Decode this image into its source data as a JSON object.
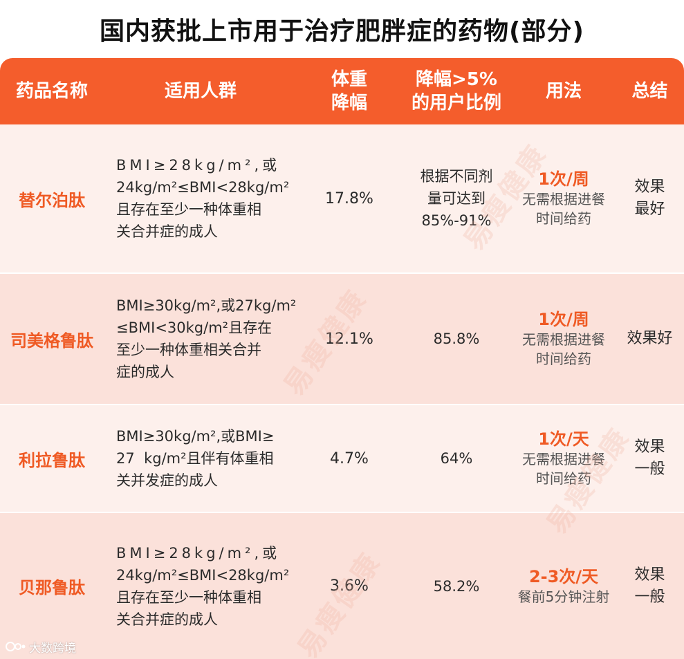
{
  "title": "国内获批上市用于治疗肥胖症的药物(部分)",
  "header": {
    "name": "药品名称",
    "population": "适用人群",
    "weight_loss": [
      "体重",
      "降幅"
    ],
    "ratio": [
      "降幅>5%",
      "的用户比例"
    ],
    "usage": "用法",
    "summary": "总结"
  },
  "rows": [
    {
      "name": "替尔泊肽",
      "population": [
        "BMI≥28kg/m²,或",
        "24kg/m²≤BMI<28kg/m²",
        "且存在至少一种体重相",
        "关合并症的成人"
      ],
      "weight_loss": "17.8%",
      "ratio": [
        "根据不同剂",
        "量可达到",
        "85%-91%"
      ],
      "frequency": "1次/周",
      "usage_note": [
        "无需根据进餐",
        "时间给药"
      ],
      "summary": [
        "效果",
        "最好"
      ]
    },
    {
      "name": "司美格鲁肽",
      "population": [
        "BMI≥30kg/m²,或27kg/m²",
        "≤BMI<30kg/m²且存在",
        "至少一种体重相关合并",
        "症的成人"
      ],
      "weight_loss": "12.1%",
      "ratio": [
        "85.8%"
      ],
      "frequency": "1次/周",
      "usage_note": [
        "无需根据进餐",
        "时间给药"
      ],
      "summary": [
        "效果好"
      ]
    },
    {
      "name": "利拉鲁肽",
      "population": [
        "BMI≥30kg/m²,或BMI≥",
        "27  kg/m²且伴有体重相",
        "关并发症的成人"
      ],
      "weight_loss": "4.7%",
      "ratio": [
        "64%"
      ],
      "frequency": "1次/天",
      "usage_note": [
        "无需根据进餐",
        "时间给药"
      ],
      "summary": [
        "效果",
        "一般"
      ]
    },
    {
      "name": "贝那鲁肽",
      "population": [
        "BMI≥28kg/m²,或",
        "24kg/m²≤BMI<28kg/m²",
        "且存在至少一种体重相",
        "关合并症的成人"
      ],
      "weight_loss": "3.6%",
      "ratio": [
        "58.2%"
      ],
      "frequency": "2-3次/天",
      "usage_note": [
        "餐前5分钟注射"
      ],
      "summary": [
        "效果",
        "一般"
      ]
    }
  ],
  "watermark": "易瘦健康",
  "source": "大数跨境",
  "colors": {
    "accent": "#f45d2c",
    "row_light": "#fdf0ec",
    "row_mid": "#fbe1da"
  }
}
